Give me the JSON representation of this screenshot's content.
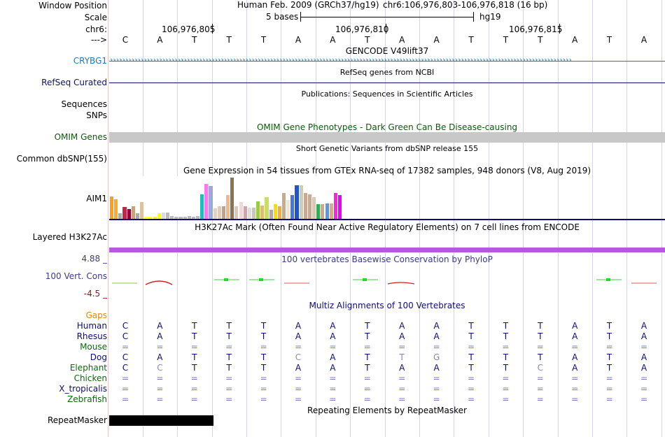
{
  "header": {
    "window_position_label": "Window Position",
    "scale_label": "Scale",
    "chr_label": "chr6:",
    "arrow_label": "--->",
    "assembly": "Human Feb. 2009 (GRCh37/hg19)",
    "position": "chr6:106,976,803-106,976,818 (16 bp)",
    "scale_text": "5 bases",
    "db": "hg19",
    "ticks": [
      "106,976,805",
      "106,976,810",
      "106,976,815"
    ]
  },
  "sequence": [
    "C",
    "A",
    "T",
    "T",
    "T",
    "A",
    "A",
    "T",
    "A",
    "A",
    "T",
    "T",
    "T",
    "A",
    "T",
    "A"
  ],
  "tracks": {
    "gencode": {
      "title": "GENCODE V49lift37",
      "label": "CRYBG1",
      "color": "#1f77b4"
    },
    "refseq": {
      "title": "RefSeq genes from NCBI",
      "label": "RefSeq Curated",
      "color": "#0c0c78"
    },
    "publications": {
      "title": "Publications: Sequences in Scientific Articles",
      "label1": "Sequences",
      "label2": "SNPs"
    },
    "omim": {
      "title": "OMIM Gene Phenotypes - Dark Green Can Be Disease-causing",
      "label": "OMIM Genes",
      "color": "#0a5a0a"
    },
    "dbsnp": {
      "title": "Short Genetic Variants from dbSNP release 155",
      "label": "Common dbSNP(155)"
    },
    "gtex": {
      "title": "Gene Expression in 54 tissues from GTEx RNA-seq of 17382 samples, 948 donors (V8, Aug 2019)",
      "label": "AIM1"
    },
    "h3k27ac": {
      "title": "H3K27Ac Mark (Often Found Near Active Regulatory Elements) on 7 cell lines from ENCODE",
      "label": "Layered H3K27Ac"
    },
    "phylop": {
      "title": "100 vertebrates Basewise Conservation by PhyloP",
      "label": "100 Vert. Cons",
      "max": "4.88 _",
      "min": "-4.5 _",
      "color": "#3a3a8c"
    },
    "multiz": {
      "title": "Multiz Alignments of 100 Vertebrates",
      "color": "#0c0c78"
    },
    "gaps": {
      "label": "Gaps",
      "color": "#e08a00"
    },
    "repeatmasker": {
      "title": "Repeating Elements by RepeatMasker",
      "label": "RepeatMasker"
    }
  },
  "alignment": [
    {
      "species": "Human",
      "color": "#0c0c78",
      "bases": [
        "C",
        "A",
        "T",
        "T",
        "T",
        "A",
        "A",
        "T",
        "A",
        "A",
        "T",
        "T",
        "T",
        "A",
        "T",
        "A"
      ]
    },
    {
      "species": "Rhesus",
      "color": "#0c0c78",
      "bases": [
        "C",
        "A",
        "T",
        "T",
        "T",
        "A",
        "A",
        "T",
        "A",
        "A",
        "T",
        "T",
        "T",
        "A",
        "T",
        "A"
      ]
    },
    {
      "species": "Mouse",
      "color": "#0a6a0a",
      "bases": [
        "=",
        "=",
        "=",
        "=",
        "=",
        "=",
        "=",
        "=",
        "=",
        "=",
        "=",
        "=",
        "=",
        "=",
        "=",
        "="
      ]
    },
    {
      "species": "Dog",
      "color": "#0c0c78",
      "bases": [
        "C",
        "A",
        "T",
        "T",
        "T",
        "C",
        "A",
        "T",
        "T",
        "G",
        "T",
        "T",
        "T",
        "A",
        "T",
        "A"
      ]
    },
    {
      "species": "Elephant",
      "color": "#0a6a0a",
      "bases": [
        "C",
        "C",
        "T",
        "T",
        "T",
        "A",
        "A",
        "T",
        "A",
        "A",
        "T",
        "T",
        "C",
        "A",
        "T",
        "A"
      ]
    },
    {
      "species": "Chicken",
      "color": "#0a6a0a",
      "bases": [
        "=",
        "=",
        "=",
        "=",
        "=",
        "=",
        "=",
        "=",
        "=",
        "=",
        "=",
        "=",
        "=",
        "=",
        "=",
        "="
      ]
    },
    {
      "species": "X_tropicalis",
      "color": "#0c0c78",
      "bases": [
        "=",
        "=",
        "=",
        "=",
        "=",
        "=",
        "=",
        "=",
        "=",
        "=",
        "=",
        "=",
        "=",
        "=",
        "=",
        "="
      ]
    },
    {
      "species": "Zebrafish",
      "color": "#0a6a0a",
      "bases": [
        "=",
        "=",
        "=",
        "=",
        "=",
        "=",
        "=",
        "=",
        "=",
        "=",
        "=",
        "=",
        "=",
        "=",
        "=",
        "="
      ]
    }
  ],
  "mismatch_positions": {
    "Dog": [
      5,
      8,
      9
    ],
    "Elephant": [
      1,
      12
    ]
  },
  "chart_data": {
    "type": "bar",
    "title": "Gene Expression in 54 tissues from GTEx RNA-seq of 17382 samples, 948 donors (V8, Aug 2019)",
    "xlabel": "",
    "ylabel": "",
    "values": [
      0.55,
      0.48,
      0.13,
      0.28,
      0.23,
      0.3,
      0.13,
      0.4,
      0.05,
      0.05,
      0.05,
      0.13,
      0.15,
      0.15,
      0.07,
      0.05,
      0.05,
      0.05,
      0.07,
      0.05,
      0.07,
      0.6,
      0.85,
      0.8,
      0.25,
      0.3,
      0.3,
      0.57,
      1.0,
      0.3,
      0.4,
      0.3,
      0.27,
      0.27,
      0.42,
      0.33,
      0.52,
      0.22,
      0.35,
      0.3,
      0.63,
      0.45,
      0.57,
      0.82,
      0.82,
      0.63,
      0.6,
      0.53,
      0.35,
      0.35,
      0.37,
      0.37,
      0.62,
      0.58
    ],
    "colors": [
      "#ff9f1a",
      "#ffaa22",
      "#aaaaaa",
      "#cc2244",
      "#990033",
      "#c8a27a",
      "#aaaaaa",
      "#ddc2a2",
      "#ffff44",
      "#ffff44",
      "#ffee22",
      "#ffff00",
      "#dddddd",
      "#bbbbbb",
      "#bbbbbb",
      "#bbbbbb",
      "#bbbbbb",
      "#bbbbbb",
      "#bbbbbb",
      "#bbbbbb",
      "#bbbbbb",
      "#22bbbb",
      "#ff77ee",
      "#99aadd",
      "#e8d0c0",
      "#e8c8b0",
      "#c8a08a",
      "#f0b888",
      "#8b7355",
      "#dfc8b8",
      "#f0d8d8",
      "#c8a8a8",
      "#dddddd",
      "#c8c8b8",
      "#99cc44",
      "#ddbb77",
      "#ccdd66",
      "#aaaaaa",
      "#ffdd00",
      "#ffaa33",
      "#ccaa88",
      "#e8e8d8",
      "#4477dd",
      "#2255cc",
      "#ccccbb",
      "#c8a890",
      "#c8aa99",
      "#d8c8b8",
      "#33aa55",
      "#c8a890",
      "#5599ee",
      "#ddaa88",
      "#ff22dd",
      "#ee00ff"
    ]
  }
}
